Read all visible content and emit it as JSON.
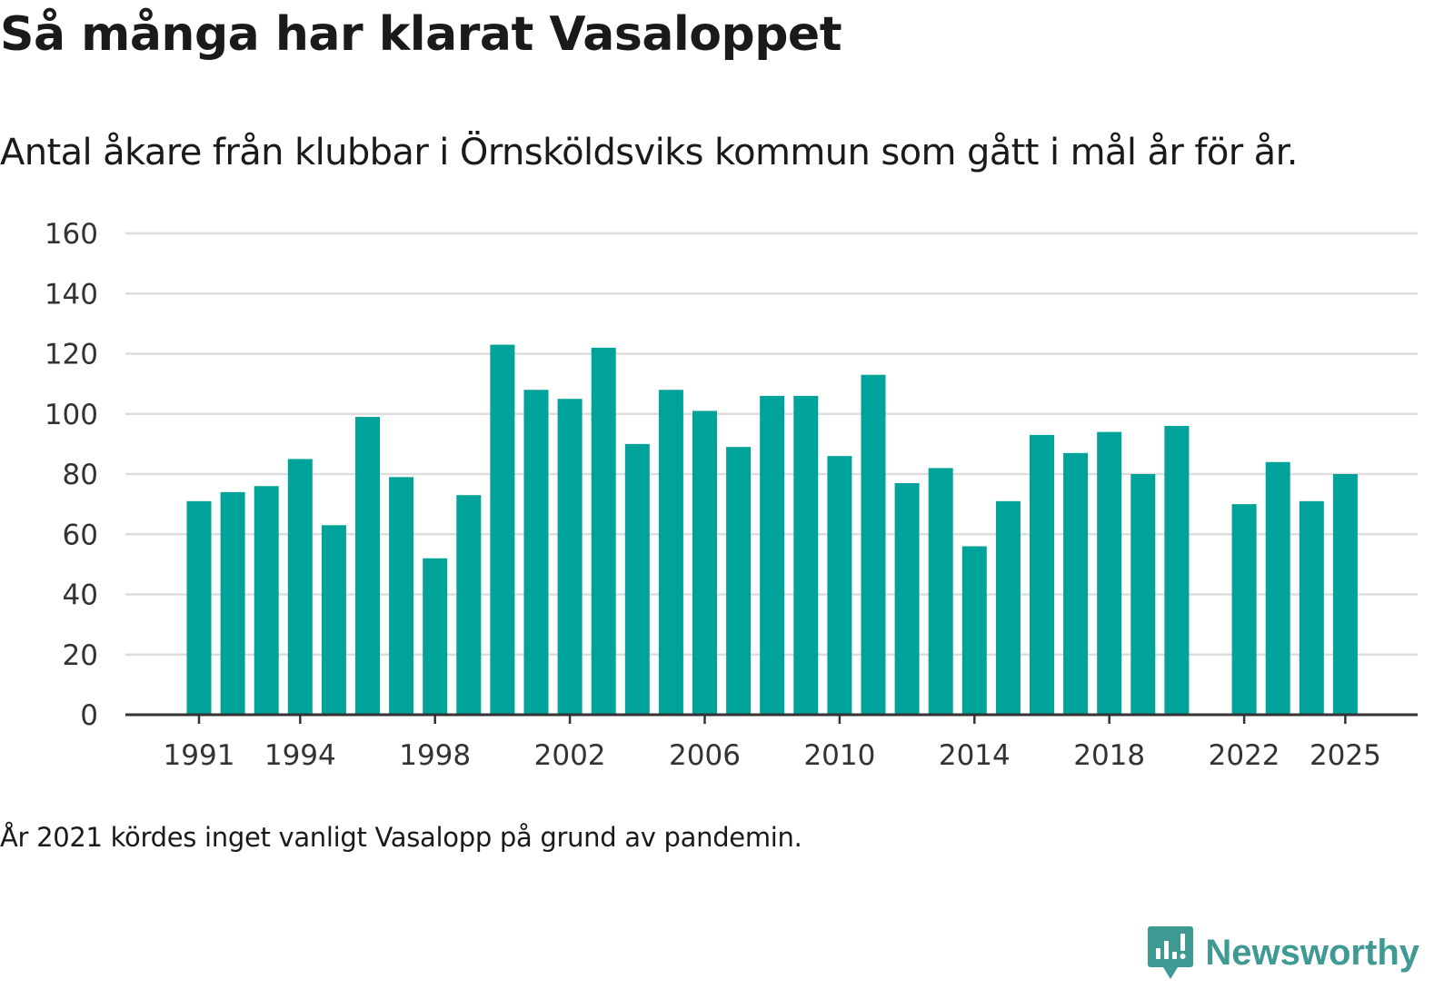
{
  "title": "Så många har klarat Vasaloppet",
  "subtitle": "Antal åkare från klubbar i Örnsköldsviks kommun som gått i mål år för år.",
  "footnote": "År 2021 kördes inget vanligt Vasalopp på grund av pandemin.",
  "brand": {
    "name": "Newsworthy",
    "icon": "newsworthy-logo-icon"
  },
  "colors": {
    "bar": "#00a39a",
    "grid": "#dddddd",
    "axis": "#333333",
    "brand": "#3f9a93"
  },
  "chart_data": {
    "type": "bar",
    "title": "Så många har klarat Vasaloppet",
    "xlabel": "",
    "ylabel": "",
    "ylim": [
      0,
      160
    ],
    "yticks": [
      0,
      20,
      40,
      60,
      80,
      100,
      120,
      140,
      160
    ],
    "xticks": [
      1991,
      1994,
      1998,
      2002,
      2006,
      2010,
      2014,
      2018,
      2022,
      2025
    ],
    "categories": [
      1991,
      1992,
      1993,
      1994,
      1995,
      1996,
      1997,
      1998,
      1999,
      2000,
      2001,
      2002,
      2003,
      2004,
      2005,
      2006,
      2007,
      2008,
      2009,
      2010,
      2011,
      2012,
      2013,
      2014,
      2015,
      2016,
      2017,
      2018,
      2019,
      2020,
      2021,
      2022,
      2023,
      2024,
      2025
    ],
    "values": [
      71,
      74,
      76,
      85,
      63,
      99,
      79,
      52,
      73,
      123,
      108,
      105,
      122,
      90,
      108,
      101,
      89,
      106,
      106,
      86,
      113,
      77,
      82,
      56,
      71,
      93,
      87,
      94,
      80,
      96,
      null,
      70,
      84,
      71,
      80
    ],
    "grid": true,
    "legend": "none"
  }
}
